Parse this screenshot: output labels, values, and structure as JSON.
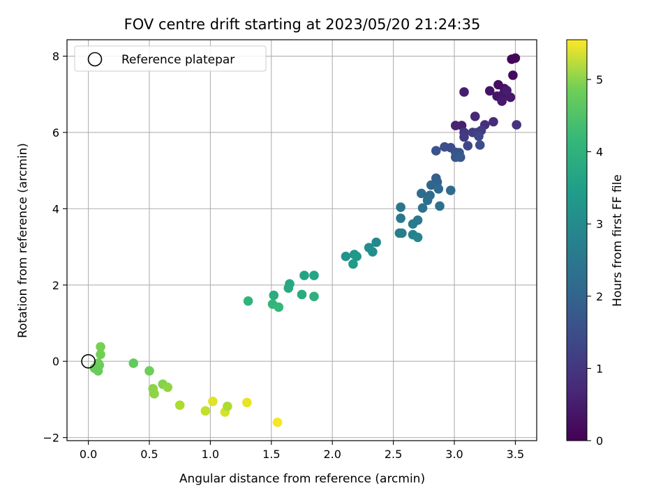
{
  "chart_data": {
    "type": "scatter",
    "title": "FOV centre drift starting at 2023/05/20 21:24:35",
    "xlabel": "Angular distance from reference (arcmin)",
    "ylabel": "Rotation from reference (arcmin)",
    "xlim": [
      -0.175,
      3.675
    ],
    "ylim": [
      -2.08,
      8.43
    ],
    "xticks": [
      0.0,
      0.5,
      1.0,
      1.5,
      2.0,
      2.5,
      3.0,
      3.5
    ],
    "xtick_labels": [
      "0.0",
      "0.5",
      "1.0",
      "1.5",
      "2.0",
      "2.5",
      "3.0",
      "3.5"
    ],
    "yticks": [
      -2,
      0,
      2,
      4,
      6,
      8
    ],
    "ytick_labels": [
      "−2",
      "0",
      "2",
      "4",
      "6",
      "8"
    ],
    "grid": true,
    "legend": {
      "placement": "upper-left",
      "entries": [
        "Reference platepar"
      ]
    },
    "reference_point": {
      "x": 0.0,
      "y": 0.0
    },
    "colorbar": {
      "label": "Hours from first FF file",
      "min": 0,
      "max": 5.55,
      "ticks": [
        0,
        1,
        2,
        3,
        4,
        5
      ],
      "tick_labels": [
        "0",
        "1",
        "2",
        "3",
        "4",
        "5"
      ],
      "colormap": "viridis"
    },
    "points": [
      {
        "x": 3.47,
        "y": 7.92,
        "c": 0.05
      },
      {
        "x": 3.5,
        "y": 7.95,
        "c": 0.1
      },
      {
        "x": 3.48,
        "y": 7.5,
        "c": 0.15
      },
      {
        "x": 3.36,
        "y": 7.25,
        "c": 0.2
      },
      {
        "x": 3.41,
        "y": 7.15,
        "c": 0.25
      },
      {
        "x": 3.29,
        "y": 7.09,
        "c": 0.3
      },
      {
        "x": 3.35,
        "y": 6.95,
        "c": 0.32
      },
      {
        "x": 3.4,
        "y": 7.0,
        "c": 0.35
      },
      {
        "x": 3.46,
        "y": 6.92,
        "c": 0.38
      },
      {
        "x": 3.39,
        "y": 6.82,
        "c": 0.4
      },
      {
        "x": 3.08,
        "y": 7.06,
        "c": 0.45
      },
      {
        "x": 3.43,
        "y": 7.1,
        "c": 0.42
      },
      {
        "x": 3.51,
        "y": 6.2,
        "c": 0.8
      },
      {
        "x": 3.32,
        "y": 6.28,
        "c": 0.7
      },
      {
        "x": 3.17,
        "y": 6.42,
        "c": 0.6
      },
      {
        "x": 3.06,
        "y": 6.18,
        "c": 0.5
      },
      {
        "x": 3.01,
        "y": 6.18,
        "c": 0.55
      },
      {
        "x": 3.25,
        "y": 6.2,
        "c": 0.75
      },
      {
        "x": 3.08,
        "y": 6.0,
        "c": 0.9
      },
      {
        "x": 3.08,
        "y": 5.88,
        "c": 0.95
      },
      {
        "x": 3.15,
        "y": 6.0,
        "c": 1.0
      },
      {
        "x": 3.19,
        "y": 6.0,
        "c": 1.05
      },
      {
        "x": 3.22,
        "y": 6.05,
        "c": 1.0
      },
      {
        "x": 3.2,
        "y": 5.9,
        "c": 1.15
      },
      {
        "x": 3.11,
        "y": 5.65,
        "c": 1.2
      },
      {
        "x": 3.21,
        "y": 5.67,
        "c": 1.3
      },
      {
        "x": 2.92,
        "y": 5.62,
        "c": 1.35
      },
      {
        "x": 2.97,
        "y": 5.6,
        "c": 1.3
      },
      {
        "x": 2.85,
        "y": 5.52,
        "c": 1.45
      },
      {
        "x": 3.01,
        "y": 5.48,
        "c": 1.4
      },
      {
        "x": 3.04,
        "y": 5.47,
        "c": 1.45
      },
      {
        "x": 3.01,
        "y": 5.35,
        "c": 1.5
      },
      {
        "x": 3.05,
        "y": 5.35,
        "c": 1.55
      },
      {
        "x": 2.85,
        "y": 4.8,
        "c": 1.7
      },
      {
        "x": 2.86,
        "y": 4.7,
        "c": 1.75
      },
      {
        "x": 2.81,
        "y": 4.62,
        "c": 1.8
      },
      {
        "x": 2.87,
        "y": 4.52,
        "c": 1.85
      },
      {
        "x": 2.97,
        "y": 4.48,
        "c": 1.9
      },
      {
        "x": 2.73,
        "y": 4.4,
        "c": 1.95
      },
      {
        "x": 2.8,
        "y": 4.35,
        "c": 1.9
      },
      {
        "x": 2.78,
        "y": 4.22,
        "c": 2.0
      },
      {
        "x": 2.88,
        "y": 4.07,
        "c": 2.05
      },
      {
        "x": 2.74,
        "y": 4.02,
        "c": 2.1
      },
      {
        "x": 2.56,
        "y": 4.04,
        "c": 2.15
      },
      {
        "x": 2.56,
        "y": 3.75,
        "c": 2.2
      },
      {
        "x": 2.7,
        "y": 3.7,
        "c": 2.25
      },
      {
        "x": 2.66,
        "y": 3.6,
        "c": 2.3
      },
      {
        "x": 2.55,
        "y": 3.36,
        "c": 2.35
      },
      {
        "x": 2.57,
        "y": 3.36,
        "c": 2.4
      },
      {
        "x": 2.66,
        "y": 3.32,
        "c": 2.45
      },
      {
        "x": 2.7,
        "y": 3.25,
        "c": 2.5
      },
      {
        "x": 2.36,
        "y": 3.12,
        "c": 2.6
      },
      {
        "x": 2.3,
        "y": 2.98,
        "c": 2.7
      },
      {
        "x": 2.33,
        "y": 2.87,
        "c": 2.75
      },
      {
        "x": 2.11,
        "y": 2.75,
        "c": 2.85
      },
      {
        "x": 2.18,
        "y": 2.8,
        "c": 2.9
      },
      {
        "x": 2.2,
        "y": 2.75,
        "c": 2.95
      },
      {
        "x": 2.17,
        "y": 2.55,
        "c": 3.0
      },
      {
        "x": 1.77,
        "y": 2.25,
        "c": 3.2
      },
      {
        "x": 1.85,
        "y": 2.25,
        "c": 3.25
      },
      {
        "x": 1.65,
        "y": 2.03,
        "c": 3.3
      },
      {
        "x": 1.64,
        "y": 1.92,
        "c": 3.35
      },
      {
        "x": 1.52,
        "y": 1.73,
        "c": 3.45
      },
      {
        "x": 1.75,
        "y": 1.75,
        "c": 3.4
      },
      {
        "x": 1.85,
        "y": 1.7,
        "c": 3.5
      },
      {
        "x": 1.31,
        "y": 1.58,
        "c": 3.6
      },
      {
        "x": 1.51,
        "y": 1.5,
        "c": 3.65
      },
      {
        "x": 1.56,
        "y": 1.42,
        "c": 3.7
      },
      {
        "x": 0.1,
        "y": 0.38,
        "c": 4.4
      },
      {
        "x": 0.1,
        "y": 0.18,
        "c": 4.35
      },
      {
        "x": 0.08,
        "y": -0.05,
        "c": 4.3
      },
      {
        "x": 0.09,
        "y": -0.1,
        "c": 4.3
      },
      {
        "x": 0.05,
        "y": -0.18,
        "c": 4.25
      },
      {
        "x": 0.08,
        "y": -0.25,
        "c": 4.25
      },
      {
        "x": 0.37,
        "y": -0.05,
        "c": 4.2
      },
      {
        "x": 0.5,
        "y": -0.25,
        "c": 4.3
      },
      {
        "x": 0.53,
        "y": -0.72,
        "c": 4.55
      },
      {
        "x": 0.54,
        "y": -0.85,
        "c": 4.6
      },
      {
        "x": 0.61,
        "y": -0.6,
        "c": 4.5
      },
      {
        "x": 0.65,
        "y": -0.68,
        "c": 4.6
      },
      {
        "x": 0.75,
        "y": -1.15,
        "c": 4.85
      },
      {
        "x": 0.96,
        "y": -1.3,
        "c": 5.05
      },
      {
        "x": 1.02,
        "y": -1.05,
        "c": 5.3
      },
      {
        "x": 1.12,
        "y": -1.33,
        "c": 5.2
      },
      {
        "x": 1.14,
        "y": -1.18,
        "c": 4.85
      },
      {
        "x": 1.3,
        "y": -1.08,
        "c": 5.35
      },
      {
        "x": 1.55,
        "y": -1.6,
        "c": 5.5
      }
    ]
  }
}
